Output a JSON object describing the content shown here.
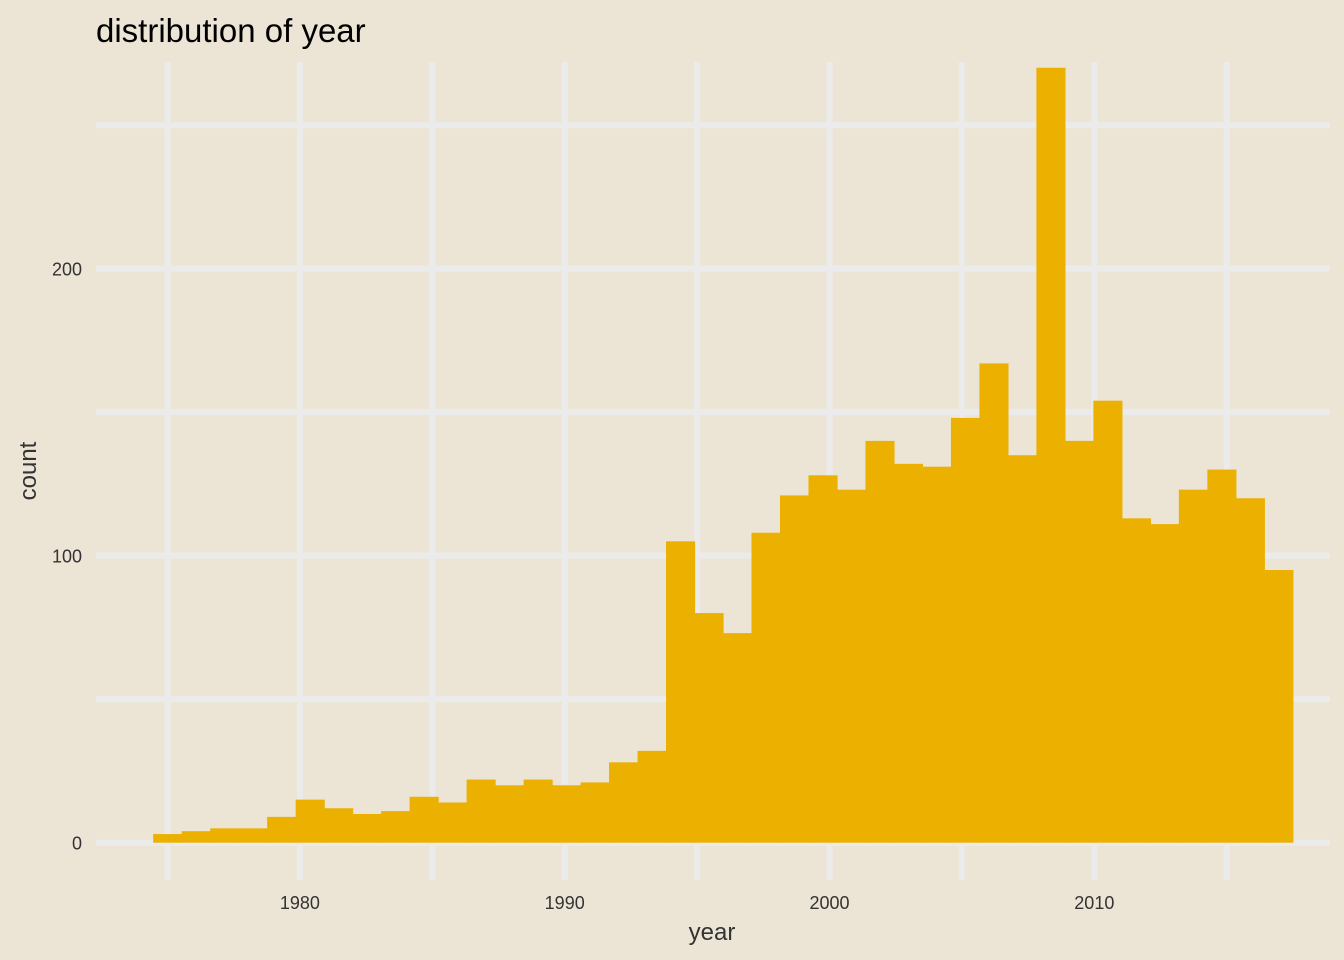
{
  "chart_data": {
    "type": "bar",
    "title": "distribution of year",
    "xlabel": "year",
    "ylabel": "count",
    "xlim": [
      1972.3,
      2018.9
    ],
    "ylim": [
      -13,
      272
    ],
    "x_ticks": [
      1980,
      1990,
      2000,
      2010
    ],
    "x_tick_labels": [
      "1980",
      "1990",
      "2000",
      "2010"
    ],
    "x_minor_ticks": [
      1975,
      1985,
      1995,
      2005,
      2015
    ],
    "y_ticks": [
      0,
      100,
      200
    ],
    "y_tick_labels": [
      "0",
      "100",
      "200"
    ],
    "y_minor_ticks": [
      50,
      150,
      250
    ],
    "bin_width": 1.0759,
    "bins_start": 1974.46,
    "values": [
      3,
      4,
      5,
      5,
      9,
      15,
      12,
      10,
      11,
      16,
      14,
      22,
      20,
      22,
      20,
      21,
      28,
      32,
      105,
      80,
      73,
      108,
      121,
      128,
      123,
      140,
      132,
      131,
      148,
      167,
      135,
      270,
      140,
      154,
      113,
      111,
      123,
      130,
      120,
      95
    ],
    "grid": true,
    "fill_color": "#ebb000",
    "background_color": "#ece5d6",
    "grid_color": "#ebebeb"
  }
}
